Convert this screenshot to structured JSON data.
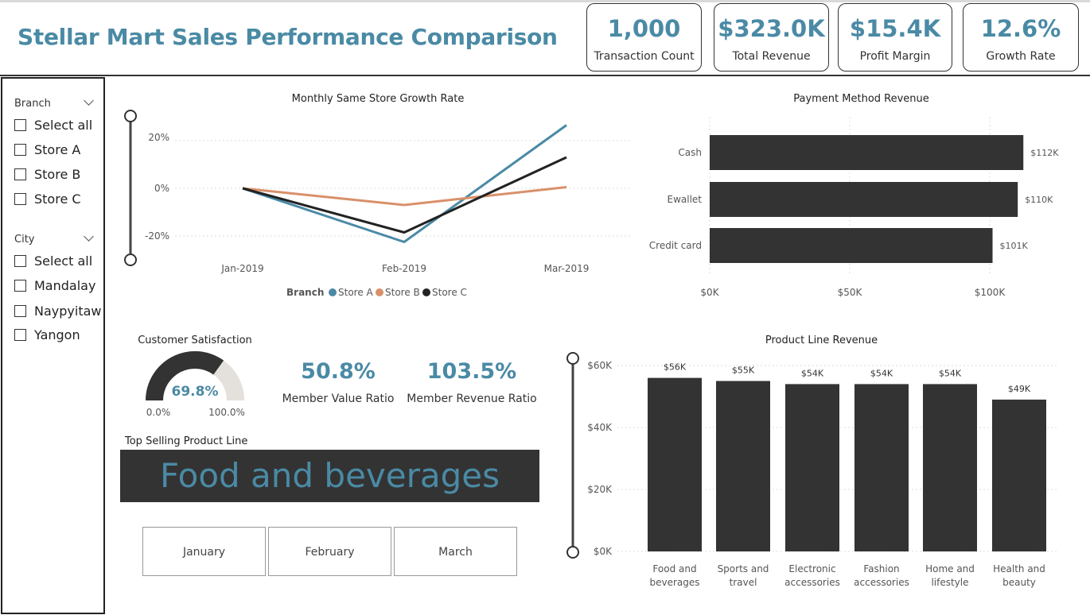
{
  "header": {
    "title": "Stellar Mart Sales Performance Comparison"
  },
  "kpis": [
    {
      "value": "1,000",
      "label": "Transaction Count"
    },
    {
      "value": "$323.0K",
      "label": "Total Revenue"
    },
    {
      "value": "$15.4K",
      "label": "Profit Margin"
    },
    {
      "value": "12.6%",
      "label": "Growth Rate"
    }
  ],
  "slicers": {
    "branch": {
      "label": "Branch",
      "options": [
        "Select all",
        "Store A",
        "Store B",
        "Store C"
      ]
    },
    "city": {
      "label": "City",
      "options": [
        "Select all",
        "Mandalay",
        "Naypyitaw",
        "Yangon"
      ]
    }
  },
  "growth_chart": {
    "title": "Monthly Same Store Growth Rate",
    "legend_title": "Branch",
    "y_ticks": [
      "20%",
      "0%",
      "-20%"
    ],
    "x_labels": [
      "Jan-2019",
      "Feb-2019",
      "Mar-2019"
    ]
  },
  "payment_chart": {
    "title": "Payment Method Revenue",
    "x_ticks": [
      "$0K",
      "$50K",
      "$100K"
    ]
  },
  "satisfaction": {
    "title": "Customer Satisfaction",
    "value": "69.8%",
    "min": "0.0%",
    "max": "100.0%",
    "fraction": 0.698
  },
  "member_value": {
    "value": "50.8%",
    "label": "Member Value Ratio"
  },
  "member_revenue": {
    "value": "103.5%",
    "label": "Member Revenue Ratio"
  },
  "top_product": {
    "title": "Top Selling Product Line",
    "value": "Food and beverages"
  },
  "months": [
    "January",
    "February",
    "March"
  ],
  "product_chart": {
    "title": "Product Line Revenue",
    "y_ticks": [
      "$60K",
      "$40K",
      "$20K",
      "$0K"
    ]
  },
  "colors": {
    "accent": "#4a8aa5",
    "storeA": "#4a8aa5",
    "storeB": "#d9906a",
    "storeC": "#222222",
    "bar": "#333333"
  },
  "chart_data": [
    {
      "type": "line",
      "title": "Monthly Same Store Growth Rate",
      "x": [
        "Jan-2019",
        "Feb-2019",
        "Mar-2019"
      ],
      "series": [
        {
          "name": "Store A",
          "values": [
            0,
            -22.5,
            26.5
          ]
        },
        {
          "name": "Store B",
          "values": [
            0,
            -7,
            0.5
          ]
        },
        {
          "name": "Store C",
          "values": [
            0,
            -18.5,
            13
          ]
        }
      ],
      "ylim": [
        -30,
        30
      ],
      "legend": "bottom",
      "grid": true
    },
    {
      "type": "bar",
      "orientation": "horizontal",
      "title": "Payment Method Revenue",
      "categories": [
        "Cash",
        "Ewallet",
        "Credit card"
      ],
      "values": [
        112,
        110,
        101
      ],
      "data_labels": [
        "$112K",
        "$110K",
        "$101K"
      ],
      "xlim": [
        0,
        125
      ]
    },
    {
      "type": "bar",
      "title": "Product Line Revenue",
      "categories": [
        "Food and beverages",
        "Sports and travel",
        "Electronic accessories",
        "Fashion accessories",
        "Home and lifestyle",
        "Health and beauty"
      ],
      "category_lines": [
        [
          "Food and",
          "beverages"
        ],
        [
          "Sports and",
          "travel"
        ],
        [
          "Electronic",
          "accessories"
        ],
        [
          "Fashion",
          "accessories"
        ],
        [
          "Home and",
          "lifestyle"
        ],
        [
          "Health and",
          "beauty"
        ]
      ],
      "values": [
        56,
        55,
        54,
        54,
        54,
        49
      ],
      "data_labels": [
        "$56K",
        "$55K",
        "$54K",
        "$54K",
        "$54K",
        "$49K"
      ],
      "ylim": [
        0,
        60
      ]
    }
  ]
}
